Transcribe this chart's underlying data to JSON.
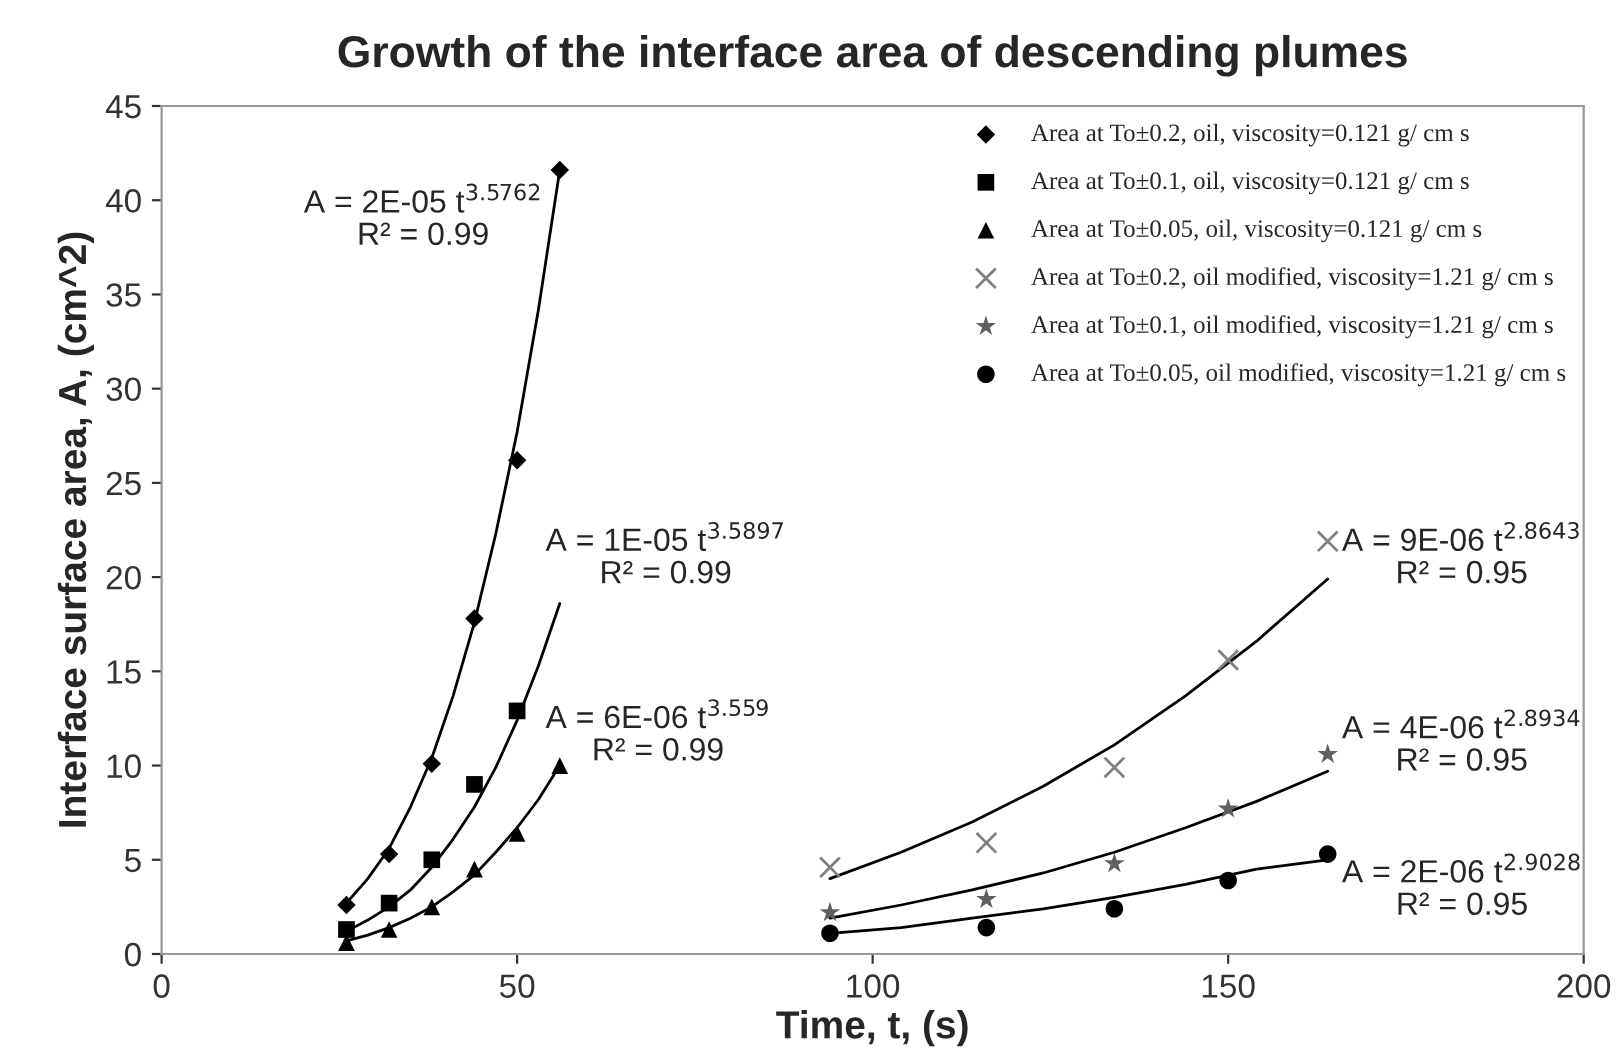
{
  "chart_data": {
    "type": "scatter",
    "title": "Growth of the interface area of descending plumes",
    "xlabel": "Time, t, (s)",
    "ylabel": "Interface surface area, A, (cm^2)",
    "xlim": [
      0,
      200
    ],
    "xticks": [
      0,
      50,
      100,
      150,
      200
    ],
    "ylim": [
      0,
      45
    ],
    "yticks": [
      0,
      5,
      10,
      15,
      20,
      25,
      30,
      35,
      40,
      45
    ],
    "grid": false,
    "legend": "top right",
    "series": [
      {
        "name": "Area at To±0.2, oil, viscosity=0.121 g/ cm s",
        "marker": "diamond",
        "color": "#000000",
        "x": [
          26,
          32,
          38,
          44,
          50,
          56
        ],
        "values": [
          2.6,
          5.3,
          10.1,
          17.8,
          26.2,
          41.6
        ]
      },
      {
        "name": "Area at To±0.1, oil, viscosity=0.121 g/ cm s",
        "marker": "square",
        "color": "#000000",
        "x": [
          26,
          32,
          38,
          44,
          50
        ],
        "values": [
          1.3,
          2.7,
          5.0,
          9.0,
          12.9
        ]
      },
      {
        "name": "Area at To±0.05, oil, viscosity=0.121 g/ cm s",
        "marker": "triangle",
        "color": "#000000",
        "x": [
          26,
          32,
          38,
          44,
          50,
          56
        ],
        "values": [
          0.6,
          1.3,
          2.5,
          4.5,
          6.4,
          10.0
        ]
      },
      {
        "name": "Area at To±0.2, oil modified, viscosity=1.21 g/ cm s",
        "marker": "cross",
        "color": "#808080",
        "x": [
          94,
          116,
          134,
          150,
          164
        ],
        "values": [
          4.6,
          5.9,
          9.9,
          15.6,
          21.9
        ]
      },
      {
        "name": "Area at To±0.1, oil modified, viscosity=1.21 g/ cm s",
        "marker": "star",
        "color": "#606060",
        "x": [
          94,
          116,
          134,
          150,
          164
        ],
        "values": [
          2.2,
          2.9,
          4.8,
          7.7,
          10.6
        ]
      },
      {
        "name": "Area at To±0.05, oil modified, viscosity=1.21 g/ cm s",
        "marker": "circle",
        "color": "#000000",
        "x": [
          94,
          116,
          134,
          150,
          164
        ],
        "values": [
          1.1,
          1.4,
          2.4,
          3.9,
          5.3
        ]
      },
      {
        "type": "line",
        "color": "#000000",
        "x": [
          26,
          29,
          32,
          35,
          38,
          41,
          44,
          47,
          50,
          53,
          56
        ],
        "values": [
          2.7,
          4.0,
          5.6,
          7.8,
          10.4,
          13.7,
          17.6,
          22.3,
          27.7,
          34.2,
          41.6
        ]
      },
      {
        "type": "line",
        "color": "#000000",
        "x": [
          26,
          29,
          32,
          35,
          38,
          41,
          44,
          47,
          50,
          53,
          56
        ],
        "values": [
          1.2,
          1.8,
          2.5,
          3.4,
          4.6,
          6.1,
          7.8,
          9.9,
          12.4,
          15.3,
          18.6
        ]
      },
      {
        "type": "line",
        "color": "#000000",
        "x": [
          26,
          29,
          32,
          35,
          38,
          41,
          44,
          47,
          50,
          53,
          56
        ],
        "values": [
          0.7,
          1.0,
          1.4,
          1.9,
          2.5,
          3.3,
          4.2,
          5.4,
          6.7,
          8.2,
          10.0
        ]
      },
      {
        "type": "line",
        "color": "#000000",
        "x": [
          94,
          104,
          114,
          124,
          134,
          144,
          154,
          164
        ],
        "values": [
          4.0,
          5.4,
          7.0,
          8.9,
          11.1,
          13.7,
          16.6,
          19.9
        ]
      },
      {
        "type": "line",
        "color": "#000000",
        "x": [
          94,
          104,
          114,
          124,
          134,
          144,
          154,
          164
        ],
        "values": [
          1.9,
          2.6,
          3.4,
          4.3,
          5.4,
          6.7,
          8.1,
          9.7
        ]
      },
      {
        "type": "line",
        "color": "#000000",
        "x": [
          94,
          104,
          114,
          124,
          134,
          144,
          154,
          164
        ],
        "values": [
          1.1,
          1.4,
          1.9,
          2.4,
          3.0,
          3.7,
          4.5,
          5.0
        ]
      }
    ],
    "annotations": [
      "A = 2E-05 t$^{3.5762}$\nR² = 0.99",
      "A = 1E-05 t$^{3.5897}$\nR² = 0.99",
      "A = 6E-06 t$^{3.559}$\nR² = 0.99",
      "A = 9E-06 t$^{2.8643}$\nR² = 0.95",
      "A = 4E-06 t$^{2.8934}$\nR² = 0.95",
      "A = 2E-06 t$^{2.9028}$\nR² = 0.95"
    ]
  }
}
